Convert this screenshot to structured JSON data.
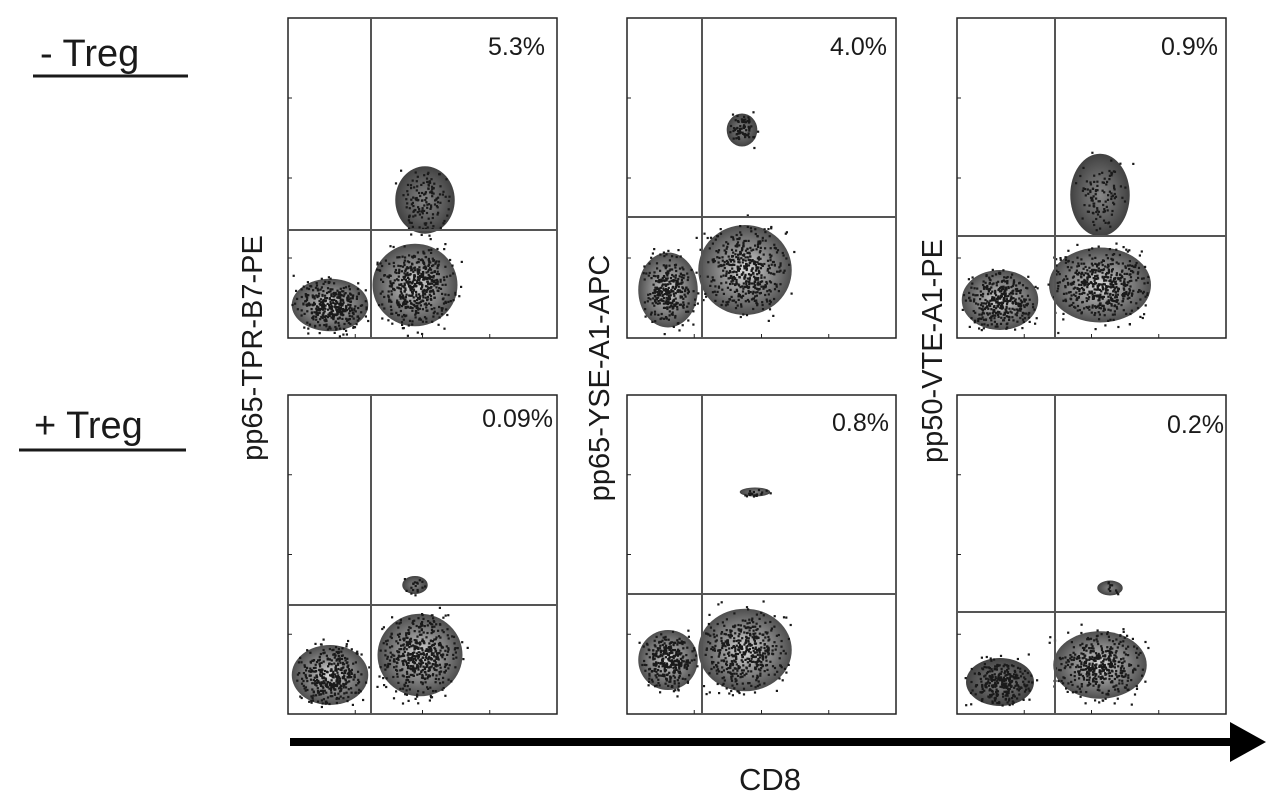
{
  "rows": [
    {
      "label": "- Treg"
    },
    {
      "label": "+ Treg"
    }
  ],
  "columns": [
    {
      "marker": "pp65-TPR-B7-PE"
    },
    {
      "marker": "pp65-YSE-A1-APC"
    },
    {
      "marker": "pp50-VTE-A1-PE"
    }
  ],
  "x_axis_label": "CD8",
  "chart_data": [
    {
      "type": "scatter",
      "row": "- Treg",
      "ylabel": "pp65-TPR-B7-PE",
      "xlabel": "CD8",
      "quadrant_percent": "5.3%",
      "value": 5.3
    },
    {
      "type": "scatter",
      "row": "- Treg",
      "ylabel": "pp65-YSE-A1-APC",
      "xlabel": "CD8",
      "quadrant_percent": "4.0%",
      "value": 4.0
    },
    {
      "type": "scatter",
      "row": "- Treg",
      "ylabel": "pp50-VTE-A1-PE",
      "xlabel": "CD8",
      "quadrant_percent": "0.9%",
      "value": 0.9
    },
    {
      "type": "scatter",
      "row": "+ Treg",
      "ylabel": "pp65-TPR-B7-PE",
      "xlabel": "CD8",
      "quadrant_percent": "0.09%",
      "value": 0.09
    },
    {
      "type": "scatter",
      "row": "+ Treg",
      "ylabel": "pp65-YSE-A1-APC",
      "xlabel": "CD8",
      "quadrant_percent": "0.8%",
      "value": 0.8
    },
    {
      "type": "scatter",
      "row": "+ Treg",
      "ylabel": "pp50-VTE-A1-PE",
      "xlabel": "CD8",
      "quadrant_percent": "0.2%",
      "value": 0.2
    }
  ],
  "colors": {
    "ink": "#1a1a1a",
    "gate": "#555555",
    "frame": "#222222"
  }
}
